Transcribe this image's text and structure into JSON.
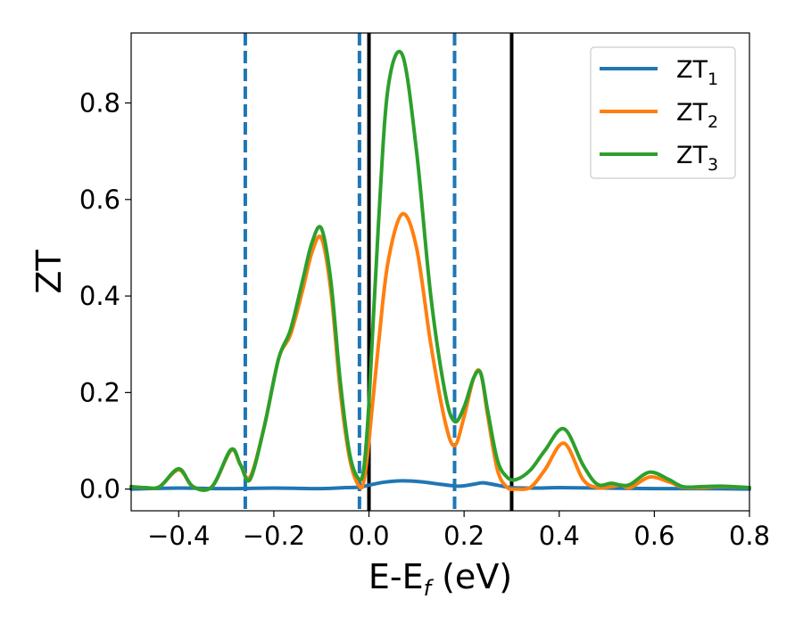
{
  "chart_data": {
    "type": "line",
    "xlabel": {
      "main": "E-E",
      "sub": "f",
      "unit": " (eV)"
    },
    "ylabel": "ZT",
    "xlim": [
      -0.5,
      0.8
    ],
    "ylim": [
      -0.045,
      0.945
    ],
    "xticks": [
      -0.4,
      -0.2,
      0.0,
      0.2,
      0.4,
      0.6,
      0.8
    ],
    "xtick_labels": [
      "−0.4",
      "−0.2",
      "0.0",
      "0.2",
      "0.4",
      "0.6",
      "0.8"
    ],
    "yticks": [
      0.0,
      0.2,
      0.4,
      0.6,
      0.8
    ],
    "ytick_labels": [
      "0.0",
      "0.2",
      "0.4",
      "0.6",
      "0.8"
    ],
    "grid": false,
    "legend_position": "top-right",
    "vlines": [
      {
        "x": -0.26,
        "style": "dashed",
        "color": "#1f77b4"
      },
      {
        "x": -0.02,
        "style": "dashed",
        "color": "#1f77b4"
      },
      {
        "x": 0.18,
        "style": "dashed",
        "color": "#1f77b4"
      },
      {
        "x": 0.0,
        "style": "solid",
        "color": "#000000"
      },
      {
        "x": 0.3,
        "style": "solid",
        "color": "#000000"
      }
    ],
    "series": [
      {
        "name": "ZT",
        "name_sub": "1",
        "color": "#1f77b4",
        "x": [
          -0.5,
          -0.4,
          -0.3,
          -0.2,
          -0.1,
          -0.05,
          -0.02,
          0.0,
          0.03,
          0.07,
          0.11,
          0.15,
          0.19,
          0.22,
          0.24,
          0.27,
          0.3,
          0.35,
          0.4,
          0.5,
          0.6,
          0.7,
          0.8
        ],
        "y": [
          0.0,
          0.002,
          0.001,
          0.002,
          0.001,
          0.003,
          0.004,
          0.008,
          0.014,
          0.017,
          0.015,
          0.01,
          0.006,
          0.01,
          0.013,
          0.008,
          0.003,
          0.002,
          0.003,
          0.002,
          0.001,
          0.001,
          0.0
        ]
      },
      {
        "name": "ZT",
        "name_sub": "2",
        "color": "#ff7f0e",
        "x": [
          -0.5,
          -0.47,
          -0.44,
          -0.4,
          -0.37,
          -0.33,
          -0.29,
          -0.27,
          -0.25,
          -0.22,
          -0.19,
          -0.165,
          -0.14,
          -0.12,
          -0.1,
          -0.08,
          -0.06,
          -0.04,
          -0.02,
          -0.01,
          0.0,
          0.02,
          0.04,
          0.07,
          0.1,
          0.13,
          0.16,
          0.18,
          0.2,
          0.22,
          0.235,
          0.25,
          0.27,
          0.29,
          0.31,
          0.34,
          0.37,
          0.41,
          0.45,
          0.48,
          0.51,
          0.53,
          0.55,
          0.59,
          0.63,
          0.66,
          0.7,
          0.74,
          0.8
        ],
        "y": [
          0.005,
          0.003,
          0.005,
          0.04,
          0.005,
          0.005,
          0.08,
          0.05,
          0.025,
          0.13,
          0.27,
          0.32,
          0.41,
          0.49,
          0.52,
          0.41,
          0.2,
          0.06,
          0.005,
          0.02,
          0.1,
          0.3,
          0.47,
          0.57,
          0.5,
          0.3,
          0.14,
          0.09,
          0.15,
          0.23,
          0.24,
          0.15,
          0.04,
          0.004,
          0.0,
          0.004,
          0.04,
          0.095,
          0.02,
          0.003,
          0.005,
          0.008,
          0.003,
          0.025,
          0.015,
          0.004,
          0.003,
          0.005,
          0.003
        ]
      },
      {
        "name": "ZT",
        "name_sub": "3",
        "color": "#2ca02c",
        "x": [
          -0.5,
          -0.47,
          -0.44,
          -0.4,
          -0.37,
          -0.33,
          -0.29,
          -0.27,
          -0.25,
          -0.22,
          -0.19,
          -0.165,
          -0.14,
          -0.12,
          -0.1,
          -0.08,
          -0.06,
          -0.04,
          -0.02,
          -0.01,
          0.0,
          0.02,
          0.04,
          0.07,
          0.1,
          0.13,
          0.16,
          0.18,
          0.2,
          0.22,
          0.235,
          0.25,
          0.27,
          0.29,
          0.31,
          0.34,
          0.37,
          0.41,
          0.45,
          0.48,
          0.51,
          0.53,
          0.55,
          0.59,
          0.63,
          0.66,
          0.7,
          0.74,
          0.8
        ],
        "y": [
          0.005,
          0.003,
          0.005,
          0.042,
          0.005,
          0.005,
          0.082,
          0.05,
          0.02,
          0.13,
          0.27,
          0.33,
          0.43,
          0.51,
          0.54,
          0.43,
          0.22,
          0.07,
          0.02,
          0.05,
          0.18,
          0.55,
          0.83,
          0.9,
          0.7,
          0.4,
          0.2,
          0.14,
          0.17,
          0.23,
          0.24,
          0.16,
          0.06,
          0.025,
          0.02,
          0.04,
          0.08,
          0.125,
          0.05,
          0.01,
          0.012,
          0.008,
          0.01,
          0.035,
          0.02,
          0.005,
          0.005,
          0.006,
          0.003
        ]
      }
    ]
  }
}
